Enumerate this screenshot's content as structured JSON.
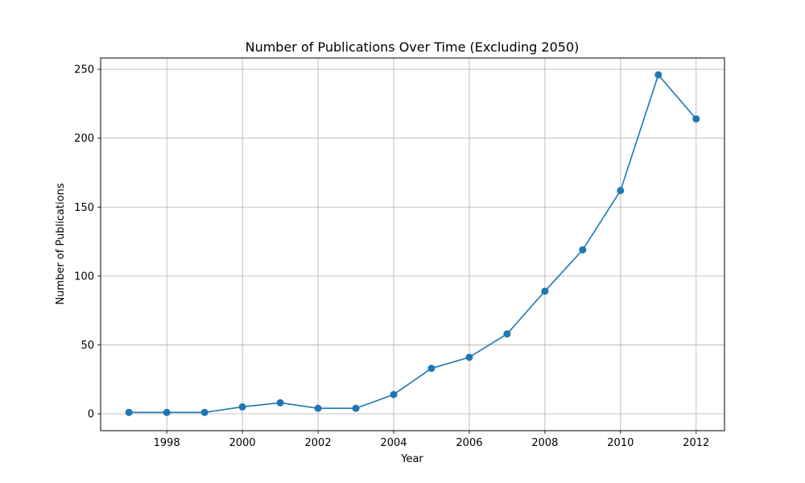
{
  "chart_data": {
    "type": "line",
    "title": "Number of Publications Over Time (Excluding 2050)",
    "xlabel": "Year",
    "ylabel": "Number of Publications",
    "x": [
      1997,
      1998,
      1999,
      2000,
      2001,
      2002,
      2003,
      2004,
      2005,
      2006,
      2007,
      2008,
      2009,
      2010,
      2011,
      2012
    ],
    "series": [
      {
        "values": [
          1,
          1,
          1,
          5,
          8,
          4,
          4,
          14,
          33,
          41,
          58,
          89,
          119,
          162,
          246,
          214
        ],
        "color": "#1f77b4"
      }
    ],
    "xlim": [
      1996.25,
      2012.75
    ],
    "ylim": [
      -12.25,
      258.25
    ],
    "xticks": [
      1998,
      2000,
      2002,
      2004,
      2006,
      2008,
      2010,
      2012
    ],
    "yticks": [
      0,
      50,
      100,
      150,
      200,
      250
    ],
    "grid": true,
    "marker": "circle"
  }
}
